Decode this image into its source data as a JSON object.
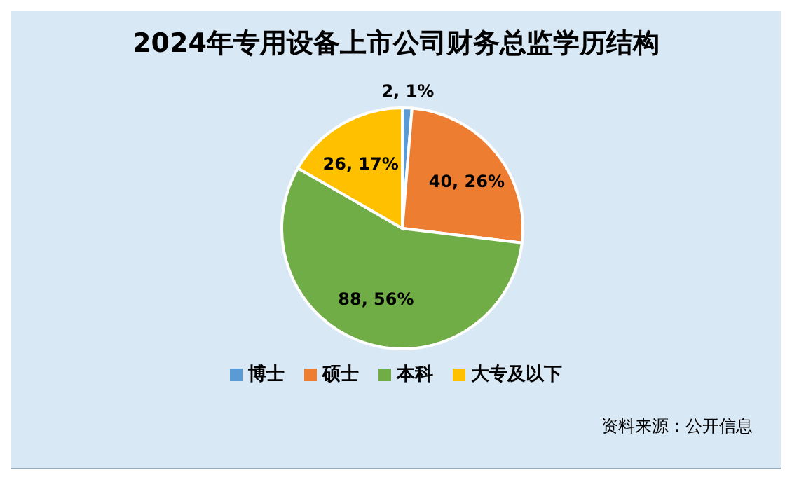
{
  "chart_data": {
    "type": "pie",
    "title": "2024年专用设备上市公司财务总监学历结构",
    "categories": [
      "博士",
      "硕士",
      "本科",
      "大专及以下"
    ],
    "values": [
      2,
      40,
      88,
      26
    ],
    "colors": [
      "#5b9bd5",
      "#ed7d31",
      "#70ad47",
      "#ffc000"
    ],
    "value_labels": [
      "2, 1%",
      "40, 26%",
      "88, 56%",
      "26, 17%"
    ],
    "legend": "bottom",
    "annotations": [
      "资料来源：公开信息"
    ]
  }
}
